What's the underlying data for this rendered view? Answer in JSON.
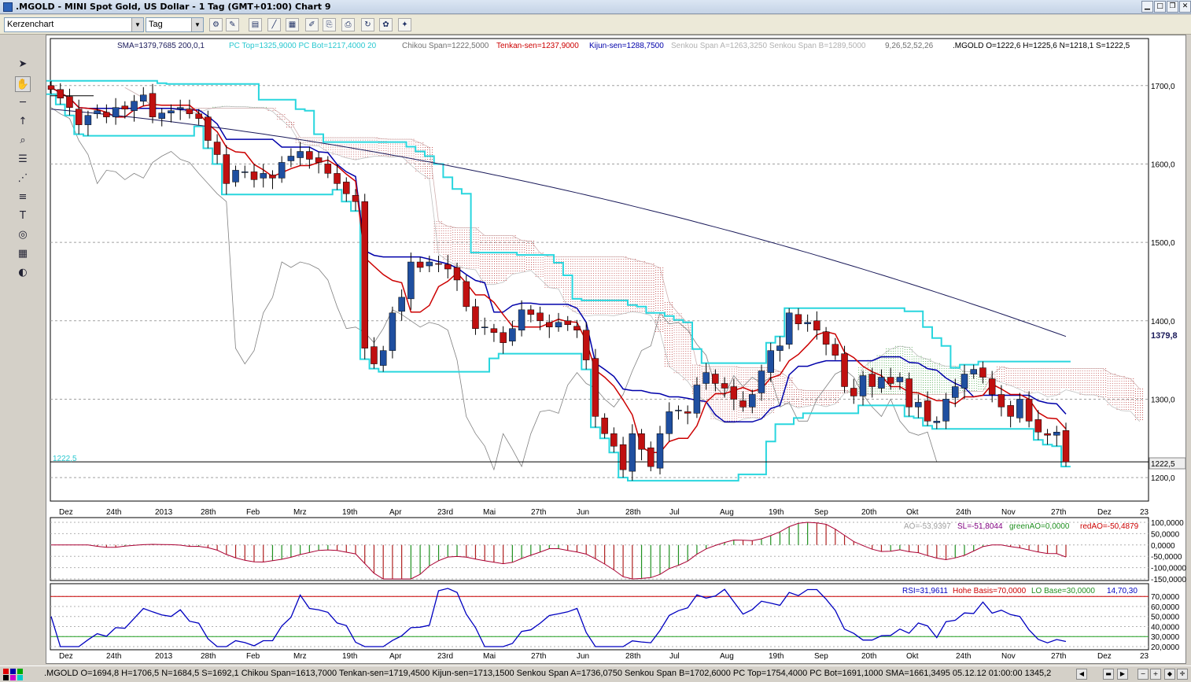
{
  "window": {
    "title": ".MGOLD - MINI Spot Gold, US Dollar - 1 Tag (GMT+01:00)    Chart 9"
  },
  "toolbar": {
    "chart_type": "Kerzenchart",
    "period": "Tag"
  },
  "legend": {
    "sma": "SMA=1379,7685  200,0,1",
    "pc": "PC Top=1325,9000 PC Bot=1217,4000  20",
    "chikou": "Chikou Span=1222,5000",
    "tenkan": "Tenkan-sen=1237,9000",
    "kijun": "Kijun-sen=1288,7500",
    "senkou": "Senkou Span A=1263,3250 Senkou Span B=1289,5000",
    "params": "9,26,52,52,26",
    "ohlc": ".MGOLD O=1222,6 H=1225,6 N=1218,1 S=1222,5"
  },
  "price_axis": [
    "1700,0",
    "1600,0",
    "1500,0",
    "1400,0",
    "1300,0",
    "1200,0"
  ],
  "price_tags": {
    "sma": "1379,8",
    "last": "1222,5",
    "last_left": "1222,5"
  },
  "x_axis": [
    "Dez",
    "24th",
    "2013",
    "28th",
    "Feb",
    "Mrz",
    "19th",
    "Apr",
    "23rd",
    "Mai",
    "27th",
    "Jun",
    "28th",
    "Jul",
    "Aug",
    "19th",
    "Sep",
    "20th",
    "Okt",
    "24th",
    "Nov",
    "27th",
    "Dez",
    "23"
  ],
  "ao": {
    "legend_ao": "AO=-53,9397",
    "legend_sl": "SL=-51,8044",
    "legend_green": "greenAO=0,0000",
    "legend_red": "redAO=-50,4879",
    "axis": [
      "100,0000",
      "50,0000",
      "0,0000",
      "-50,0000",
      "-100,0000",
      "-150,0000"
    ]
  },
  "rsi": {
    "legend_rsi": "RSI=31,9611",
    "legend_high": "Hohe Basis=70,0000",
    "legend_low": "LO Base=30,0000",
    "legend_params": "14,70,30",
    "axis": [
      "70,0000",
      "60,0000",
      "50,0000",
      "40,0000",
      "30,0000",
      "20,0000"
    ]
  },
  "status": {
    "text": ".MGOLD O=1694,8 H=1706,5 N=1684,5 S=1692,1  Chikou Span=1613,7000 Tenkan-sen=1719,4500 Kijun-sen=1713,1500 Senkou Span A=1736,0750 Senkou Span B=1702,6000 PC Top=1754,4000 PC Bot=1691,1000 SMA=1661,3495  05.12.12 01:00:00  1345,2"
  },
  "colors": {
    "sma": "#1a1a5a",
    "pc": "#29d6de",
    "tenkan": "#cc0000",
    "kijun": "#0000aa",
    "chikou": "#808080",
    "cloud_red": "#b02020",
    "cloud_green": "#209020",
    "up_candle": "#1f4fa0",
    "down_candle": "#c01010",
    "rsi": "#0000c0"
  },
  "chart_data": {
    "type": "candlestick",
    "title": ".MGOLD - MINI Spot Gold, US Dollar - 1 Tag",
    "close": [
      1695,
      1684,
      1672,
      1650,
      1662,
      1668,
      1660,
      1672,
      1670,
      1680,
      1688,
      1660,
      1665,
      1668,
      1672,
      1664,
      1658,
      1630,
      1612,
      1575,
      1592,
      1590,
      1580,
      1588,
      1582,
      1602,
      1610,
      1616,
      1606,
      1602,
      1588,
      1575,
      1562,
      1552,
      1365,
      1345,
      1362,
      1410,
      1430,
      1475,
      1468,
      1475,
      1472,
      1466,
      1452,
      1418,
      1390,
      1392,
      1385,
      1372,
      1390,
      1414,
      1408,
      1400,
      1392,
      1398,
      1395,
      1388,
      1350,
      1278,
      1256,
      1240,
      1210,
      1256,
      1236,
      1214,
      1256,
      1284,
      1286,
      1282,
      1318,
      1334,
      1320,
      1314,
      1300,
      1290,
      1306,
      1336,
      1362,
      1368,
      1410,
      1396,
      1398,
      1388,
      1370,
      1356,
      1316,
      1304,
      1330,
      1316,
      1328,
      1320,
      1328,
      1290,
      1296,
      1272,
      1272,
      1300,
      1316,
      1332,
      1338,
      1328,
      1306,
      1290,
      1278,
      1300,
      1272,
      1258,
      1254,
      1258,
      1220
    ],
    "sma": {
      "start": 1670,
      "end": 1380
    },
    "price_range": [
      1170,
      1760
    ],
    "ao_range": [
      -150,
      100
    ],
    "rsi_range": [
      20,
      78
    ],
    "rsi_high": 70,
    "rsi_low": 30
  }
}
